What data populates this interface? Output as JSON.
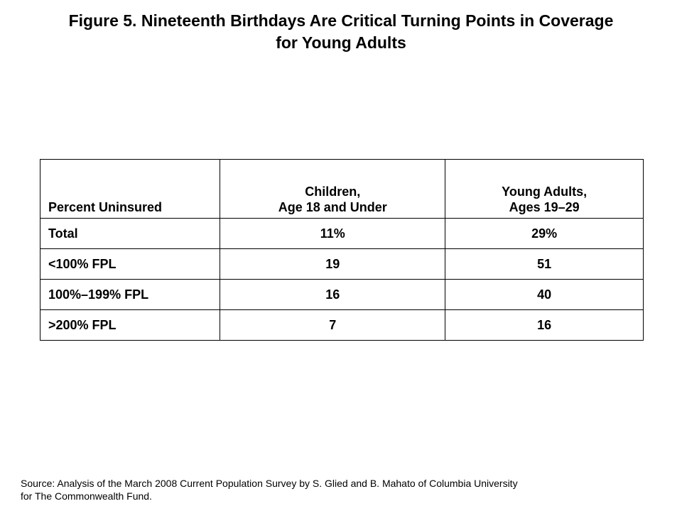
{
  "title": {
    "line1": "Figure 5. Nineteenth Birthdays Are Critical Turning Points in Coverage",
    "line2": "for Young Adults"
  },
  "chart_data": {
    "type": "table",
    "columns": [
      {
        "label": "Percent Uninsured",
        "lines": [
          "Percent Uninsured"
        ]
      },
      {
        "label": "Children, Age 18 and Under",
        "lines": [
          "Children,",
          "Age 18 and Under"
        ]
      },
      {
        "label": "Young Adults, Ages 19–29",
        "lines": [
          "Young Adults,",
          "Ages 19–29"
        ]
      }
    ],
    "rows": [
      {
        "label": "Total",
        "values": [
          "11%",
          "29%"
        ]
      },
      {
        "label": "<100% FPL",
        "values": [
          "19",
          "51"
        ]
      },
      {
        "label": "100%–199% FPL",
        "values": [
          "16",
          "40"
        ]
      },
      {
        "label": ">200% FPL",
        "values": [
          "7",
          "16"
        ]
      }
    ]
  },
  "source": {
    "line1": "Source: Analysis of the March 2008 Current Population Survey by S. Glied and B. Mahato of Columbia University",
    "line2": "for The Commonwealth Fund."
  }
}
